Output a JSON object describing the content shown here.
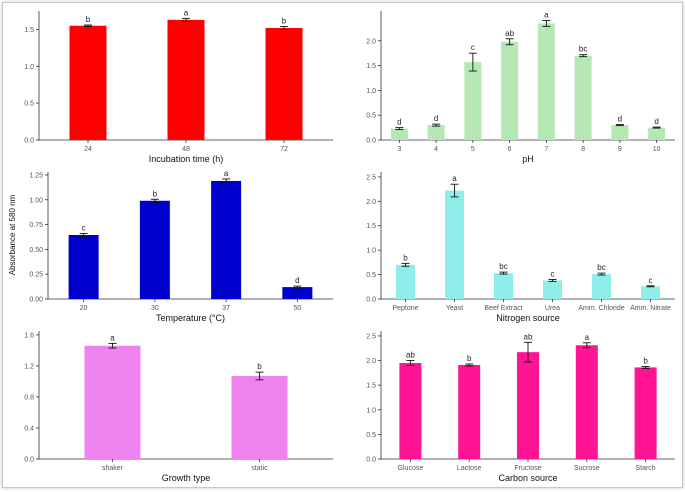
{
  "figure": {
    "shared_ylabel": "Absorbance at 580 nm"
  },
  "chart_data": [
    {
      "type": "bar",
      "xlabel": "Incubation time (h)",
      "ylabel": "",
      "categories": [
        "24",
        "48",
        "72"
      ],
      "values": [
        1.55,
        1.63,
        1.52
      ],
      "errors": [
        0.01,
        0.02,
        0.02
      ],
      "letters": [
        "b",
        "a",
        "b"
      ],
      "ylim": [
        0,
        1.75
      ],
      "yticks": [
        0,
        0.5,
        1.0,
        1.5
      ],
      "ytick_labels": [
        "0.0",
        "0.5",
        "1.0",
        "1.5"
      ],
      "color": "#ff0000"
    },
    {
      "type": "bar",
      "xlabel": "pH",
      "ylabel": "",
      "categories": [
        "3",
        "4",
        "5",
        "6",
        "7",
        "8",
        "9",
        "10"
      ],
      "values": [
        0.23,
        0.3,
        1.57,
        1.98,
        2.35,
        1.7,
        0.3,
        0.25
      ],
      "errors": [
        0.02,
        0.02,
        0.18,
        0.06,
        0.06,
        0.02,
        0.01,
        0.01
      ],
      "letters": [
        "d",
        "d",
        "c",
        "ab",
        "a",
        "bc",
        "d",
        "d"
      ],
      "ylim": [
        0,
        2.6
      ],
      "yticks": [
        0,
        0.5,
        1.0,
        1.5,
        2.0
      ],
      "ytick_labels": [
        "0.0",
        "0.5",
        "1.0",
        "1.5",
        "2.0"
      ],
      "color": "#b5e8b5"
    },
    {
      "type": "bar",
      "xlabel": "Temperature (°C)",
      "ylabel": "",
      "categories": [
        "20",
        "30",
        "37",
        "50"
      ],
      "values": [
        0.645,
        0.99,
        1.19,
        0.12
      ],
      "errors": [
        0.015,
        0.015,
        0.02,
        0.01
      ],
      "letters": [
        "c",
        "b",
        "a",
        "d"
      ],
      "ylim": [
        0,
        1.28
      ],
      "yticks": [
        0,
        0.25,
        0.5,
        0.75,
        1.0,
        1.25
      ],
      "ytick_labels": [
        "0.00",
        "0.25",
        "0.50",
        "0.75",
        "1.00",
        "1.25"
      ],
      "color": "#0000cc"
    },
    {
      "type": "bar",
      "xlabel": "Nitrogen source",
      "ylabel": "",
      "categories": [
        "Peptone",
        "Yeast",
        "Beef Extract",
        "Urea",
        "Amm. Chloride",
        "Amm. Nitrate"
      ],
      "values": [
        0.7,
        2.22,
        0.53,
        0.38,
        0.51,
        0.26
      ],
      "errors": [
        0.03,
        0.13,
        0.02,
        0.02,
        0.02,
        0.01
      ],
      "letters": [
        "b",
        "a",
        "bc",
        "c",
        "bc",
        "c"
      ],
      "ylim": [
        0,
        2.6
      ],
      "yticks": [
        0,
        0.5,
        1.0,
        1.5,
        2.0,
        2.5
      ],
      "ytick_labels": [
        "0.0",
        "0.5",
        "1.0",
        "1.5",
        "2.0",
        "2.5"
      ],
      "color": "#90eeea"
    },
    {
      "type": "bar",
      "xlabel": "Growth type",
      "ylabel": "",
      "categories": [
        "shaker",
        "static"
      ],
      "values": [
        1.46,
        1.07
      ],
      "errors": [
        0.03,
        0.05
      ],
      "letters": [
        "a",
        "b"
      ],
      "ylim": [
        0,
        1.65
      ],
      "yticks": [
        0,
        0.4,
        0.8,
        1.2,
        1.6
      ],
      "ytick_labels": [
        "0.0",
        "0.4",
        "0.8",
        "1.2",
        "1.6"
      ],
      "color": "#ee82ee"
    },
    {
      "type": "bar",
      "xlabel": "Carbon source",
      "ylabel": "",
      "categories": [
        "Glucose",
        "Lactose",
        "Fructose",
        "Sucrose",
        "Starch"
      ],
      "values": [
        1.95,
        1.91,
        2.17,
        2.31,
        1.86
      ],
      "errors": [
        0.05,
        0.02,
        0.2,
        0.05,
        0.02
      ],
      "letters": [
        "ab",
        "b",
        "ab",
        "a",
        "b"
      ],
      "ylim": [
        0,
        2.6
      ],
      "yticks": [
        0,
        0.5,
        1.0,
        1.5,
        2.0,
        2.5
      ],
      "ytick_labels": [
        "0.0",
        "0.5",
        "1.0",
        "1.5",
        "2.0",
        "2.5"
      ],
      "color": "#ff1493"
    }
  ]
}
